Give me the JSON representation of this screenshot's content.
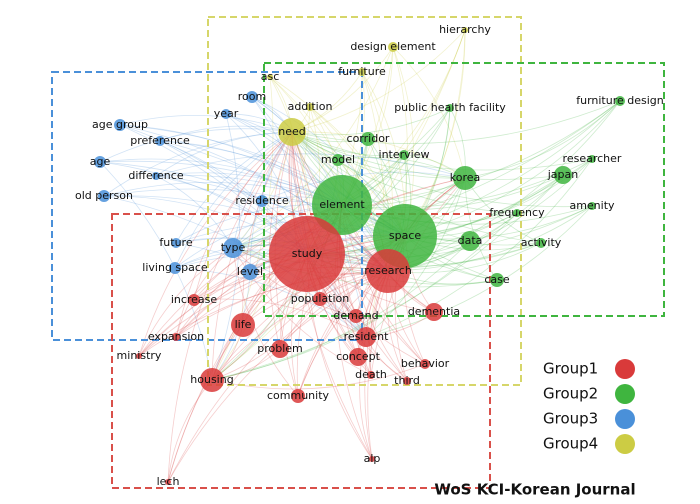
{
  "groups": [
    {
      "name": "Group1",
      "color": "#d93a3a"
    },
    {
      "name": "Group2",
      "color": "#3fb53f"
    },
    {
      "name": "Group3",
      "color": "#4a90d9"
    },
    {
      "name": "Group4",
      "color": "#cccc44"
    }
  ],
  "nodes": [
    {
      "label": "hierarchy",
      "group": 3
    },
    {
      "label": "design element",
      "group": 3
    },
    {
      "label": "furniture",
      "group": 3
    },
    {
      "label": "asc",
      "group": 3
    },
    {
      "label": "furniture design",
      "group": 1
    },
    {
      "label": "room",
      "group": 2
    },
    {
      "label": "addition",
      "group": 3
    },
    {
      "label": "public health facility",
      "group": 1
    },
    {
      "label": "age group",
      "group": 2
    },
    {
      "label": "year",
      "group": 2
    },
    {
      "label": "need",
      "group": 3
    },
    {
      "label": "preference",
      "group": 2
    },
    {
      "label": "corridor",
      "group": 1
    },
    {
      "label": "interview",
      "group": 1
    },
    {
      "label": "researcher",
      "group": 1
    },
    {
      "label": "age",
      "group": 2
    },
    {
      "label": "model",
      "group": 1
    },
    {
      "label": "korea",
      "group": 1
    },
    {
      "label": "japan",
      "group": 1
    },
    {
      "label": "difference",
      "group": 2
    },
    {
      "label": "old person",
      "group": 2
    },
    {
      "label": "element",
      "group": 1
    },
    {
      "label": "residence",
      "group": 2
    },
    {
      "label": "amenity",
      "group": 1
    },
    {
      "label": "frequency",
      "group": 1
    },
    {
      "label": "space",
      "group": 1
    },
    {
      "label": "future",
      "group": 2
    },
    {
      "label": "data",
      "group": 1
    },
    {
      "label": "activity",
      "group": 1
    },
    {
      "label": "type",
      "group": 2
    },
    {
      "label": "study",
      "group": 0
    },
    {
      "label": "research",
      "group": 0
    },
    {
      "label": "living space",
      "group": 2
    },
    {
      "label": "level",
      "group": 2
    },
    {
      "label": "case",
      "group": 1
    },
    {
      "label": "increase",
      "group": 0
    },
    {
      "label": "population",
      "group": 0
    },
    {
      "label": "demand",
      "group": 0
    },
    {
      "label": "dementia",
      "group": 0
    },
    {
      "label": "life",
      "group": 0
    },
    {
      "label": "expansion",
      "group": 0
    },
    {
      "label": "resident",
      "group": 0
    },
    {
      "label": "problem",
      "group": 0
    },
    {
      "label": "ministry",
      "group": 0
    },
    {
      "label": "concept",
      "group": 0
    },
    {
      "label": "behavior",
      "group": 0
    },
    {
      "label": "death",
      "group": 0
    },
    {
      "label": "third",
      "group": 0
    },
    {
      "label": "housing",
      "group": 0
    },
    {
      "label": "community",
      "group": 0
    },
    {
      "label": "alp",
      "group": 0
    },
    {
      "label": "lech",
      "group": 0
    }
  ],
  "footer": "WoS KCI-Korean Journal"
}
